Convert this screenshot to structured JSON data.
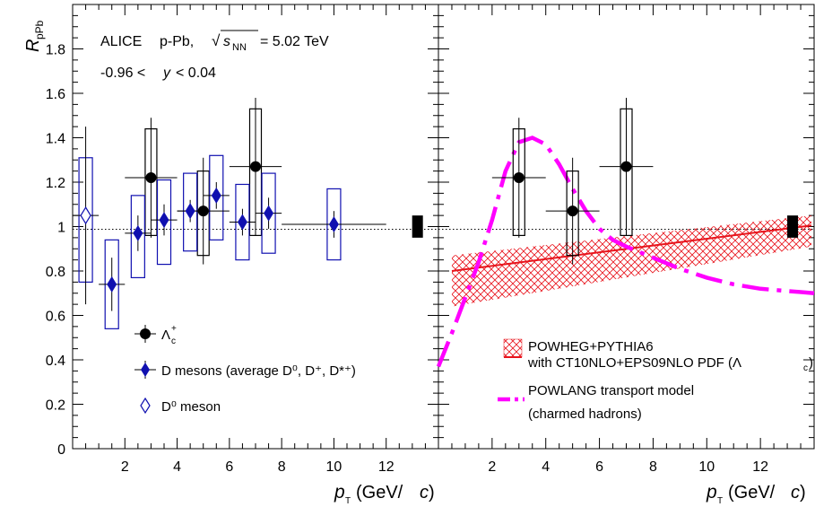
{
  "colors": {
    "alice_black": "#000000",
    "d_mesons": "#1010b0",
    "powheg": "#e8141c",
    "powlang": "#ff00ff",
    "reference_line": "#000000"
  },
  "chart_data": [
    {
      "panel": "left",
      "type": "scatter",
      "ylabel": "R_pPb",
      "ylabel_main": "R",
      "ylabel_sub": "pPb",
      "xlabel_p": "p",
      "xlabel_sub": "T",
      "xlabel_unit_pre": "(GeV/",
      "xlabel_unit_c": "c",
      "xlabel_unit_post": ")",
      "xlim": [
        0,
        14
      ],
      "ylim": [
        0,
        2
      ],
      "x_ticks": [
        "2",
        "4",
        "6",
        "8",
        "10",
        "12"
      ],
      "y_ticks": [
        "0",
        "0.2",
        "0.4",
        "0.6",
        "0.8",
        "1",
        "1.2",
        "1.4",
        "1.6",
        "1.8"
      ],
      "header": {
        "experiment": "ALICE",
        "system": "p-Pb,",
        "sqrt": "s",
        "sqrt_sub": "NN",
        "energy": "= 5.02 TeV",
        "rapidity_pre": "-0.96 <",
        "rapidity_var": "y",
        "rapidity_post": "< 0.04"
      },
      "legend": [
        {
          "marker": "filled-circle",
          "label_main": "Λ",
          "label_sub": "c",
          "label_sup": "+"
        },
        {
          "marker": "filled-diamond",
          "label": "D mesons (average D⁰, D⁺, D*⁺)"
        },
        {
          "marker": "open-diamond",
          "label": "D⁰ meson"
        }
      ],
      "series": [
        {
          "name": "Λc+",
          "marker": "filled-circle",
          "points": [
            {
              "x": 3,
              "xerr": 1,
              "y": 1.22,
              "stat": [
                0.27,
                0.27
              ],
              "syst_lo": 0.96,
              "syst_hi": 1.44
            },
            {
              "x": 5,
              "xerr": 1,
              "y": 1.07,
              "stat": [
                0.24,
                0.24
              ],
              "syst_lo": 0.87,
              "syst_hi": 1.25
            },
            {
              "x": 7,
              "xerr": 1,
              "y": 1.27,
              "stat": [
                0.31,
                0.31
              ],
              "syst_lo": 0.96,
              "syst_hi": 1.53
            }
          ]
        },
        {
          "name": "D mesons (average D0, D+, D*+)",
          "marker": "filled-diamond",
          "points": [
            {
              "x": 1.5,
              "xerr": 0.5,
              "y": 0.74,
              "stat": [
                0.12,
                0.12
              ],
              "syst_lo": 0.54,
              "syst_hi": 0.94
            },
            {
              "x": 2.5,
              "xerr": 0.5,
              "y": 0.97,
              "stat": [
                0.08,
                0.08
              ],
              "syst_lo": 0.77,
              "syst_hi": 1.14
            },
            {
              "x": 3.5,
              "xerr": 0.5,
              "y": 1.03,
              "stat": [
                0.07,
                0.07
              ],
              "syst_lo": 0.83,
              "syst_hi": 1.21
            },
            {
              "x": 4.5,
              "xerr": 0.5,
              "y": 1.07,
              "stat": [
                0.05,
                0.05
              ],
              "syst_lo": 0.89,
              "syst_hi": 1.24
            },
            {
              "x": 5.5,
              "xerr": 0.5,
              "y": 1.14,
              "stat": [
                0.06,
                0.06
              ],
              "syst_lo": 0.94,
              "syst_hi": 1.32
            },
            {
              "x": 6.5,
              "xerr": 0.5,
              "y": 1.02,
              "stat": [
                0.06,
                0.06
              ],
              "syst_lo": 0.85,
              "syst_hi": 1.19
            },
            {
              "x": 7.5,
              "xerr": 0.5,
              "y": 1.06,
              "stat": [
                0.07,
                0.07
              ],
              "syst_lo": 0.88,
              "syst_hi": 1.24
            },
            {
              "x": 10,
              "xerr": 2,
              "y": 1.01,
              "stat": [
                0.06,
                0.06
              ],
              "syst_lo": 0.85,
              "syst_hi": 1.17
            }
          ]
        },
        {
          "name": "D0 meson",
          "marker": "open-diamond",
          "points": [
            {
              "x": 0.5,
              "xerr": 0.5,
              "y": 1.05,
              "stat": [
                0.4,
                0.4
              ],
              "syst_lo": 0.75,
              "syst_hi": 1.31
            }
          ]
        }
      ],
      "normalization_box": {
        "x": 13.2,
        "y_lo": 0.95,
        "y_hi": 1.05
      },
      "reference_y": 1.0
    },
    {
      "panel": "right",
      "type": "line",
      "xlabel_p": "p",
      "xlabel_sub": "T",
      "xlabel_unit_pre": "(GeV/",
      "xlabel_unit_c": "c",
      "xlabel_unit_post": ")",
      "xlim": [
        0,
        14
      ],
      "ylim": [
        0,
        2
      ],
      "x_ticks": [
        "2",
        "4",
        "6",
        "8",
        "10",
        "12"
      ],
      "legend": [
        {
          "style": "hatched-band-with-line",
          "label_line1": "POWHEG+PYTHIA6",
          "label_line2": "with CT10NLO+EPS09NLO PDF (Λ",
          "label_line2_sub": "c",
          "label_line2_post": ")"
        },
        {
          "style": "dash-dot-magenta",
          "label_line1": "POWLANG transport model",
          "label_line2": "(charmed hadrons)"
        }
      ],
      "series": [
        {
          "name": "Λc+",
          "marker": "filled-circle",
          "points": [
            {
              "x": 3,
              "xerr": 1,
              "y": 1.22,
              "stat": [
                0.27,
                0.27
              ],
              "syst_lo": 0.96,
              "syst_hi": 1.44
            },
            {
              "x": 5,
              "xerr": 1,
              "y": 1.07,
              "stat": [
                0.24,
                0.24
              ],
              "syst_lo": 0.87,
              "syst_hi": 1.25
            },
            {
              "x": 7,
              "xerr": 1,
              "y": 1.27,
              "stat": [
                0.31,
                0.31
              ],
              "syst_lo": 0.96,
              "syst_hi": 1.53
            }
          ]
        },
        {
          "name": "POWHEG+PYTHIA6 with CT10NLO+EPS09NLO PDF (Λc)",
          "style": "band",
          "x": [
            0.5,
            13.9
          ],
          "central": [
            0.8,
            1.005
          ],
          "band_lo": [
            0.64,
            0.91
          ],
          "band_hi": [
            0.87,
            1.05
          ]
        },
        {
          "name": "POWLANG transport model (charmed hadrons)",
          "style": "dash-dot",
          "x": [
            0.0,
            0.5,
            1.0,
            1.5,
            2.0,
            2.5,
            3.0,
            3.5,
            4.0,
            4.5,
            5.0,
            5.5,
            6.0,
            6.5,
            7.0,
            8.0,
            9.0,
            10.0,
            11.0,
            12.0,
            13.0,
            14.0
          ],
          "y": [
            0.37,
            0.52,
            0.68,
            0.84,
            1.03,
            1.25,
            1.38,
            1.4,
            1.37,
            1.28,
            1.17,
            1.07,
            0.99,
            0.94,
            0.91,
            0.86,
            0.81,
            0.77,
            0.74,
            0.72,
            0.71,
            0.7
          ]
        }
      ],
      "normalization_box": {
        "x": 13.2,
        "y_lo": 0.95,
        "y_hi": 1.05
      },
      "reference_y": 1.0
    }
  ]
}
